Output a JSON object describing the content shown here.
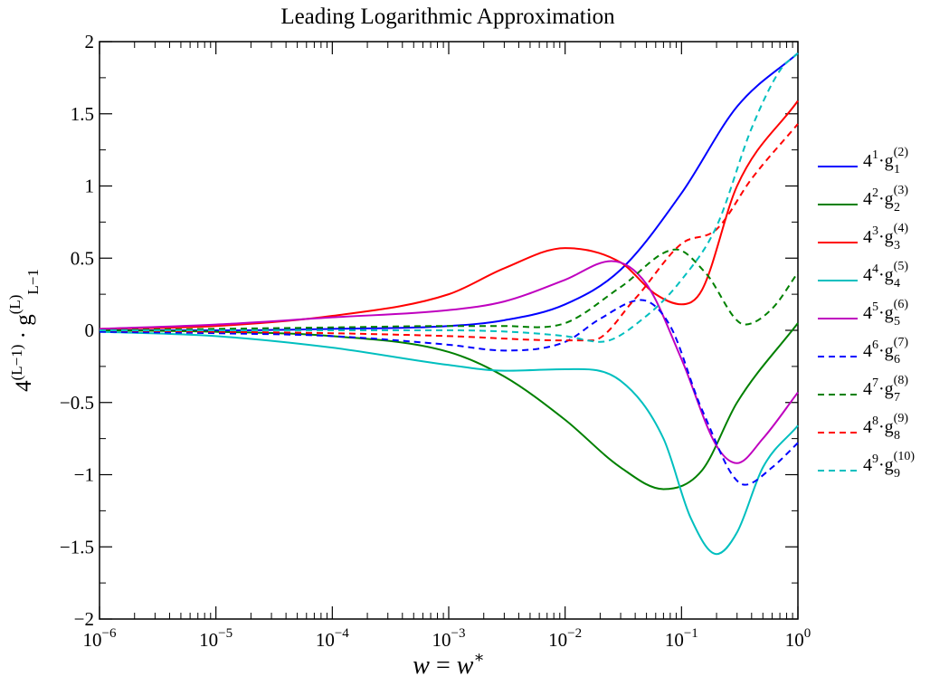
{
  "chart_data": {
    "type": "line",
    "title": "Leading Logarithmic Approximation",
    "xlabel": "w = w*",
    "ylabel": "4^(L−1) · g_{L−1}^{(L)}",
    "x_scale": "log",
    "xlim": [
      1e-06,
      1
    ],
    "ylim": [
      -2,
      2
    ],
    "x_ticks": [
      {
        "value": 1e-06,
        "base": "10",
        "exp": "−6"
      },
      {
        "value": 1e-05,
        "base": "10",
        "exp": "−5"
      },
      {
        "value": 0.0001,
        "base": "10",
        "exp": "−4"
      },
      {
        "value": 0.001,
        "base": "10",
        "exp": "−3"
      },
      {
        "value": 0.01,
        "base": "10",
        "exp": "−2"
      },
      {
        "value": 0.1,
        "base": "10",
        "exp": "−1"
      },
      {
        "value": 1,
        "base": "10",
        "exp": "0"
      }
    ],
    "y_ticks": [
      {
        "value": -2,
        "label": "−2"
      },
      {
        "value": -1.5,
        "label": "−1.5"
      },
      {
        "value": -1,
        "label": "−1"
      },
      {
        "value": -0.5,
        "label": "−0.5"
      },
      {
        "value": 0,
        "label": "0"
      },
      {
        "value": 0.5,
        "label": "0.5"
      },
      {
        "value": 1,
        "label": "1"
      },
      {
        "value": 1.5,
        "label": "1.5"
      },
      {
        "value": 2,
        "label": "2"
      }
    ],
    "grid": false,
    "legend_position": "right",
    "series": [
      {
        "legend": {
          "pow": "1",
          "sup": "(2)",
          "sub": "1"
        },
        "color": "#0000ff",
        "dash": "solid",
        "x": [
          1e-06,
          1e-05,
          0.0001,
          0.001,
          0.003,
          0.01,
          0.03,
          0.1,
          0.3,
          1
        ],
        "y": [
          0,
          0,
          0.01,
          0.03,
          0.07,
          0.18,
          0.42,
          0.95,
          1.55,
          1.92
        ]
      },
      {
        "legend": {
          "pow": "2",
          "sup": "(3)",
          "sub": "2"
        },
        "color": "#008000",
        "dash": "solid",
        "x": [
          1e-06,
          1e-05,
          0.0001,
          0.001,
          0.003,
          0.01,
          0.03,
          0.07,
          0.15,
          0.3,
          1
        ],
        "y": [
          0,
          -0.01,
          -0.04,
          -0.15,
          -0.32,
          -0.62,
          -0.95,
          -1.1,
          -0.97,
          -0.5,
          0.05
        ]
      },
      {
        "legend": {
          "pow": "3",
          "sup": "(4)",
          "sub": "3"
        },
        "color": "#ff0000",
        "dash": "solid",
        "x": [
          1e-06,
          1e-05,
          0.0001,
          0.001,
          0.003,
          0.01,
          0.03,
          0.06,
          0.1,
          0.15,
          0.3,
          1
        ],
        "y": [
          0.01,
          0.03,
          0.1,
          0.25,
          0.43,
          0.57,
          0.47,
          0.25,
          0.18,
          0.28,
          1.0,
          1.59
        ]
      },
      {
        "legend": {
          "pow": "4",
          "sup": "(5)",
          "sub": "4"
        },
        "color": "#00bfbf",
        "dash": "solid",
        "x": [
          1e-06,
          1e-05,
          0.0001,
          0.001,
          0.003,
          0.01,
          0.03,
          0.07,
          0.12,
          0.2,
          0.3,
          0.5,
          1
        ],
        "y": [
          -0.01,
          -0.04,
          -0.12,
          -0.24,
          -0.28,
          -0.27,
          -0.35,
          -0.75,
          -1.3,
          -1.55,
          -1.4,
          -0.95,
          -0.66
        ]
      },
      {
        "legend": {
          "pow": "5",
          "sup": "(6)",
          "sub": "5"
        },
        "color": "#bf00bf",
        "dash": "solid",
        "x": [
          1e-06,
          1e-05,
          0.0001,
          0.001,
          0.003,
          0.01,
          0.025,
          0.05,
          0.1,
          0.2,
          0.3,
          0.5,
          1
        ],
        "y": [
          0.01,
          0.04,
          0.09,
          0.14,
          0.2,
          0.35,
          0.48,
          0.32,
          -0.2,
          -0.8,
          -0.92,
          -0.75,
          -0.43
        ]
      },
      {
        "legend": {
          "pow": "6",
          "sup": "(7)",
          "sub": "6"
        },
        "color": "#0000ff",
        "dash": "dashed",
        "x": [
          1e-06,
          1e-05,
          0.0001,
          0.001,
          0.003,
          0.01,
          0.02,
          0.045,
          0.08,
          0.15,
          0.35,
          0.6,
          1
        ],
        "y": [
          -0.01,
          -0.02,
          -0.04,
          -0.1,
          -0.14,
          -0.08,
          0.08,
          0.21,
          0.03,
          -0.55,
          -1.07,
          -0.95,
          -0.78
        ]
      },
      {
        "legend": {
          "pow": "7",
          "sup": "(8)",
          "sub": "7"
        },
        "color": "#008000",
        "dash": "dashed",
        "x": [
          1e-06,
          1e-05,
          0.0001,
          0.001,
          0.003,
          0.01,
          0.03,
          0.09,
          0.16,
          0.35,
          0.6,
          1
        ],
        "y": [
          0,
          0.01,
          0.02,
          0.03,
          0.03,
          0.05,
          0.3,
          0.56,
          0.4,
          0.04,
          0.15,
          0.4
        ]
      },
      {
        "legend": {
          "pow": "8",
          "sup": "(9)",
          "sub": "8"
        },
        "color": "#ff0000",
        "dash": "dashed",
        "x": [
          1e-06,
          1e-05,
          0.0001,
          0.001,
          0.01,
          0.017,
          0.04,
          0.1,
          0.2,
          0.4,
          1
        ],
        "y": [
          0,
          -0.01,
          -0.02,
          -0.04,
          -0.07,
          -0.07,
          0.22,
          0.6,
          0.7,
          1.05,
          1.43
        ]
      },
      {
        "legend": {
          "pow": "9",
          "sup": "(10)",
          "sub": "9"
        },
        "color": "#00bfbf",
        "dash": "dashed",
        "x": [
          1e-06,
          0.0001,
          0.001,
          0.01,
          0.02,
          0.05,
          0.1,
          0.2,
          0.4,
          0.7,
          1
        ],
        "y": [
          0,
          0,
          0,
          -0.04,
          -0.08,
          0.1,
          0.35,
          0.72,
          1.4,
          1.8,
          1.92
        ]
      }
    ]
  }
}
